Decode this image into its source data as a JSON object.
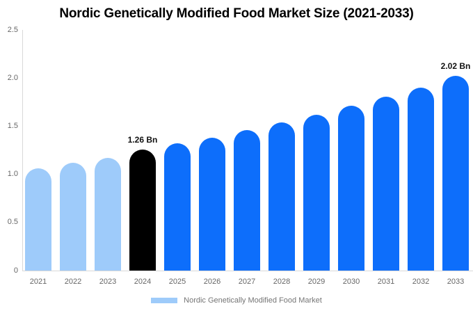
{
  "chart_data": {
    "type": "bar",
    "title": "Nordic Genetically Modified Food Market Size (2021-2033)",
    "categories": [
      "2021",
      "2022",
      "2023",
      "2024",
      "2025",
      "2026",
      "2027",
      "2028",
      "2029",
      "2030",
      "2031",
      "2032",
      "2033"
    ],
    "values": [
      1.06,
      1.12,
      1.17,
      1.26,
      1.32,
      1.38,
      1.46,
      1.54,
      1.62,
      1.71,
      1.81,
      1.9,
      2.02
    ],
    "unit": "Bn",
    "ylim": [
      0,
      2.5
    ],
    "yticks": [
      "0",
      "0.5",
      "1.0",
      "1.5",
      "2.0",
      "2.5"
    ],
    "grid": false,
    "bar_colors": [
      "#9ecbfa",
      "#9ecbfa",
      "#9ecbfa",
      "#000000",
      "#0d6efb",
      "#0d6efb",
      "#0d6efb",
      "#0d6efb",
      "#0d6efb",
      "#0d6efb",
      "#0d6efb",
      "#0d6efb",
      "#0d6efb"
    ],
    "annotations": [
      {
        "category": "2024",
        "text": "1.26 Bn"
      },
      {
        "category": "2033",
        "text": "2.02 Bn"
      }
    ],
    "legend_label": "Nordic Genetically Modified Food Market",
    "legend_position": "bottom",
    "xlabel": "",
    "ylabel": ""
  },
  "colors": {
    "light_blue_bar": "#9ecbfa",
    "bright_blue_bar": "#0d6efb",
    "highlight_bar": "#000000",
    "legend_swatch": "#9ecbfa",
    "axis_line": "#d9d9d9",
    "tick_text": "#666666",
    "annotation_text": "#111111",
    "legend_text": "#757575",
    "title_text": "#000000",
    "background": "#ffffff"
  }
}
